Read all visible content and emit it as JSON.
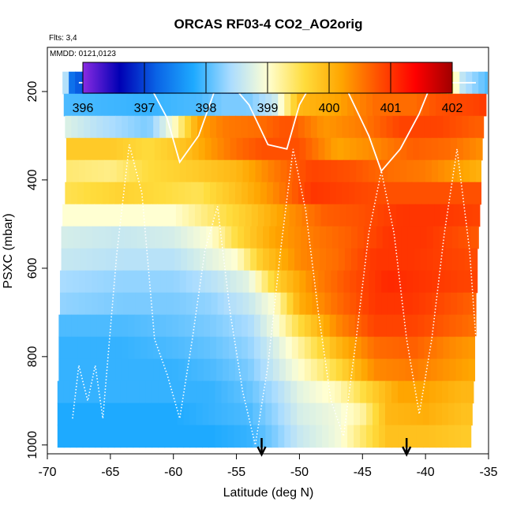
{
  "chart_data": {
    "type": "heatmap",
    "title": "ORCAS RF03-4 CO2_AO2orig",
    "subtitle_flights": "Flts: 3,4",
    "subtitle_dates": "MMDD: 0121,0123",
    "xlabel": "Latitude (deg N)",
    "ylabel": "PSXC (mbar)",
    "xlim": [
      -70,
      -35
    ],
    "ylim": [
      1020,
      100
    ],
    "x_ticks": [
      "-70",
      "-65",
      "-60",
      "-55",
      "-50",
      "-45",
      "-40",
      "-35"
    ],
    "x_tick_values": [
      -70,
      -65,
      -60,
      -55,
      -50,
      -45,
      -40,
      -35
    ],
    "y_ticks": [
      "200",
      "400",
      "600",
      "800",
      "1000"
    ],
    "y_tick_values": [
      200,
      400,
      600,
      800,
      1000
    ],
    "colorbar": {
      "min": 396,
      "max": 402,
      "labels": [
        "396",
        "397",
        "398",
        "399",
        "400",
        "401",
        "402"
      ],
      "stops": [
        "#8a2be2",
        "#0000b4",
        "#0a64e6",
        "#1eaaff",
        "#aadcff",
        "#ffffd2",
        "#ffdc3c",
        "#ffa500",
        "#ff5000",
        "#ff0000",
        "#a00000"
      ]
    },
    "arrows_lat": [
      -53,
      -41.5
    ],
    "pressure_levels": [
      180,
      230,
      280,
      330,
      380,
      430,
      480,
      530,
      580,
      630,
      680,
      730,
      780,
      830,
      880,
      930,
      980
    ],
    "profile_lat_bounds": [
      [
        -68.8,
        -35.1
      ],
      [
        -68.7,
        -35.2
      ],
      [
        -68.6,
        -35.4
      ],
      [
        -68.5,
        -35.5
      ],
      [
        -68.5,
        -35.6
      ],
      [
        -68.6,
        -35.6
      ],
      [
        -68.8,
        -35.7
      ],
      [
        -68.9,
        -35.8
      ],
      [
        -68.9,
        -35.9
      ],
      [
        -69.0,
        -35.9
      ],
      [
        -69.0,
        -36.0
      ],
      [
        -69.1,
        -36.0
      ],
      [
        -69.1,
        -36.1
      ],
      [
        -69.1,
        -36.1
      ],
      [
        -69.2,
        -36.2
      ],
      [
        -69.2,
        -36.3
      ],
      [
        -69.2,
        -36.4
      ]
    ],
    "co2_field": [
      [
        [
          -69.0,
          399.5
        ],
        [
          -68.0,
          397.2
        ],
        [
          -64.0,
          396.8
        ],
        [
          -61.0,
          397.2
        ],
        [
          -59.0,
          397.8
        ],
        [
          -57.0,
          397.5
        ],
        [
          -55.0,
          397.0
        ],
        [
          -53.0,
          398.8
        ],
        [
          -51.0,
          399.6
        ],
        [
          -49.0,
          400.2
        ],
        [
          -47.0,
          400.2
        ],
        [
          -45.0,
          400.4
        ],
        [
          -43.0,
          400.6
        ],
        [
          -41.0,
          400.5
        ],
        [
          -39.0,
          400.4
        ],
        [
          -37.0,
          398.5
        ],
        [
          -35.0,
          398.0
        ]
      ],
      [
        [
          -69.0,
          398.0
        ],
        [
          -62.0,
          397.9
        ],
        [
          -58.0,
          398.0
        ],
        [
          -56.0,
          398.2
        ],
        [
          -54.0,
          398.2
        ],
        [
          -52.0,
          398.6
        ],
        [
          -50.0,
          400.0
        ],
        [
          -47.0,
          400.2
        ],
        [
          -44.0,
          400.6
        ],
        [
          -41.0,
          400.6
        ],
        [
          -39.0,
          400.8
        ],
        [
          -36.0,
          400.9
        ],
        [
          -35.0,
          401.0
        ]
      ],
      [
        [
          -69.0,
          398.8
        ],
        [
          -66.0,
          398.5
        ],
        [
          -62.0,
          398.2
        ],
        [
          -60.0,
          399.0
        ],
        [
          -58.0,
          400.2
        ],
        [
          -56.0,
          400.5
        ],
        [
          -53.0,
          400.6
        ],
        [
          -51.0,
          400.8
        ],
        [
          -48.0,
          400.3
        ],
        [
          -45.0,
          400.5
        ],
        [
          -42.0,
          400.9
        ],
        [
          -39.0,
          400.9
        ],
        [
          -36.0,
          400.7
        ],
        [
          -35.0,
          400.7
        ]
      ],
      [
        [
          -69.0,
          399.8
        ],
        [
          -65.0,
          399.8
        ],
        [
          -62.0,
          399.6
        ],
        [
          -59.0,
          399.9
        ],
        [
          -57.0,
          400.3
        ],
        [
          -55.0,
          400.6
        ],
        [
          -53.0,
          400.8
        ],
        [
          -50.0,
          400.8
        ],
        [
          -47.0,
          400.2
        ],
        [
          -44.0,
          400.4
        ],
        [
          -41.0,
          400.7
        ],
        [
          -38.0,
          400.6
        ],
        [
          -35.0,
          400.3
        ]
      ],
      [
        [
          -69.0,
          399.4
        ],
        [
          -65.0,
          399.3
        ],
        [
          -62.0,
          399.6
        ],
        [
          -58.0,
          399.8
        ],
        [
          -55.0,
          400.0
        ],
        [
          -52.0,
          400.5
        ],
        [
          -49.0,
          400.9
        ],
        [
          -46.0,
          400.8
        ],
        [
          -43.0,
          400.6
        ],
        [
          -40.0,
          400.5
        ],
        [
          -37.0,
          400.2
        ],
        [
          -35.0,
          400.0
        ]
      ],
      [
        [
          -69.0,
          399.5
        ],
        [
          -64.0,
          399.7
        ],
        [
          -61.0,
          399.6
        ],
        [
          -58.0,
          399.5
        ],
        [
          -55.0,
          399.9
        ],
        [
          -52.0,
          400.4
        ],
        [
          -49.0,
          401.0
        ],
        [
          -46.0,
          400.9
        ],
        [
          -43.0,
          400.8
        ],
        [
          -40.0,
          400.8
        ],
        [
          -37.0,
          400.8
        ],
        [
          -35.0,
          400.8
        ]
      ],
      [
        [
          -69.0,
          399.0
        ],
        [
          -64.0,
          399.0
        ],
        [
          -60.0,
          399.0
        ],
        [
          -57.0,
          399.4
        ],
        [
          -54.0,
          399.8
        ],
        [
          -51.0,
          400.3
        ],
        [
          -48.0,
          400.7
        ],
        [
          -45.0,
          400.8
        ],
        [
          -42.0,
          401.0
        ],
        [
          -39.0,
          401.0
        ],
        [
          -36.0,
          400.9
        ],
        [
          -35.0,
          400.9
        ]
      ],
      [
        [
          -69.0,
          398.7
        ],
        [
          -64.0,
          398.6
        ],
        [
          -60.0,
          398.7
        ],
        [
          -57.0,
          399.0
        ],
        [
          -55.0,
          399.6
        ],
        [
          -52.0,
          400.2
        ],
        [
          -49.0,
          400.5
        ],
        [
          -46.0,
          400.7
        ],
        [
          -43.0,
          401.0
        ],
        [
          -40.0,
          401.0
        ],
        [
          -37.0,
          400.8
        ],
        [
          -35.0,
          400.7
        ]
      ],
      [
        [
          -69.0,
          398.6
        ],
        [
          -64.0,
          398.5
        ],
        [
          -60.0,
          398.5
        ],
        [
          -57.0,
          398.8
        ],
        [
          -55.0,
          399.0
        ],
        [
          -53.0,
          399.8
        ],
        [
          -50.0,
          400.4
        ],
        [
          -47.0,
          400.6
        ],
        [
          -44.0,
          401.0
        ],
        [
          -41.0,
          401.0
        ],
        [
          -38.0,
          400.9
        ],
        [
          -35.0,
          400.8
        ]
      ],
      [
        [
          -69.0,
          398.4
        ],
        [
          -64.0,
          398.3
        ],
        [
          -60.0,
          398.3
        ],
        [
          -57.0,
          398.5
        ],
        [
          -54.0,
          398.8
        ],
        [
          -52.0,
          399.7
        ],
        [
          -49.0,
          400.4
        ],
        [
          -46.0,
          400.8
        ],
        [
          -43.0,
          401.1
        ],
        [
          -40.0,
          401.0
        ],
        [
          -37.0,
          400.9
        ],
        [
          -35.0,
          400.9
        ]
      ],
      [
        [
          -69.0,
          398.3
        ],
        [
          -64.0,
          398.2
        ],
        [
          -60.0,
          398.2
        ],
        [
          -57.0,
          398.3
        ],
        [
          -54.0,
          398.6
        ],
        [
          -52.0,
          399.0
        ],
        [
          -50.0,
          400.1
        ],
        [
          -47.0,
          400.6
        ],
        [
          -44.0,
          401.0
        ],
        [
          -41.0,
          401.0
        ],
        [
          -38.0,
          400.8
        ],
        [
          -35.0,
          400.6
        ]
      ],
      [
        [
          -69.0,
          398.0
        ],
        [
          -64.0,
          398.0
        ],
        [
          -60.0,
          398.1
        ],
        [
          -57.0,
          398.2
        ],
        [
          -54.0,
          398.4
        ],
        [
          -52.0,
          398.9
        ],
        [
          -50.0,
          399.6
        ],
        [
          -47.0,
          400.4
        ],
        [
          -44.0,
          400.9
        ],
        [
          -41.0,
          400.9
        ],
        [
          -38.0,
          400.7
        ],
        [
          -35.0,
          400.5
        ]
      ],
      [
        [
          -69.0,
          397.9
        ],
        [
          -64.0,
          397.9
        ],
        [
          -60.0,
          398.0
        ],
        [
          -57.0,
          398.1
        ],
        [
          -54.0,
          398.3
        ],
        [
          -52.0,
          398.7
        ],
        [
          -50.0,
          399.2
        ],
        [
          -47.0,
          400.0
        ],
        [
          -44.0,
          400.6
        ],
        [
          -41.0,
          400.7
        ],
        [
          -38.0,
          400.4
        ],
        [
          -35.0,
          400.2
        ]
      ],
      [
        [
          -69.0,
          397.9
        ],
        [
          -64.0,
          397.9
        ],
        [
          -60.0,
          397.9
        ],
        [
          -57.0,
          398.0
        ],
        [
          -54.0,
          398.2
        ],
        [
          -52.0,
          398.6
        ],
        [
          -50.0,
          399.0
        ],
        [
          -47.0,
          399.6
        ],
        [
          -44.0,
          400.4
        ],
        [
          -41.0,
          400.5
        ],
        [
          -38.0,
          400.3
        ],
        [
          -35.0,
          400.1
        ]
      ],
      [
        [
          -69.0,
          397.9
        ],
        [
          -64.0,
          397.9
        ],
        [
          -60.0,
          397.9
        ],
        [
          -57.0,
          397.9
        ],
        [
          -54.0,
          398.1
        ],
        [
          -52.0,
          398.4
        ],
        [
          -50.0,
          398.8
        ],
        [
          -47.0,
          399.1
        ],
        [
          -44.0,
          399.8
        ],
        [
          -42.0,
          400.2
        ],
        [
          -40.0,
          400.2
        ],
        [
          -37.0,
          400.0
        ],
        [
          -35.0,
          400.0
        ]
      ],
      [
        [
          -69.0,
          397.8
        ],
        [
          -64.0,
          397.8
        ],
        [
          -60.0,
          397.8
        ],
        [
          -57.0,
          397.9
        ],
        [
          -54.0,
          398.0
        ],
        [
          -52.0,
          398.3
        ],
        [
          -50.0,
          398.7
        ],
        [
          -47.0,
          398.9
        ],
        [
          -45.0,
          399.2
        ],
        [
          -43.0,
          400.0
        ],
        [
          -40.0,
          400.1
        ],
        [
          -37.0,
          399.9
        ],
        [
          -35.0,
          399.9
        ]
      ],
      [
        [
          -69.0,
          397.8
        ],
        [
          -64.0,
          397.8
        ],
        [
          -60.0,
          397.8
        ],
        [
          -57.0,
          397.8
        ],
        [
          -54.0,
          397.9
        ],
        [
          -52.0,
          398.2
        ],
        [
          -50.0,
          398.6
        ],
        [
          -47.0,
          398.9
        ],
        [
          -45.0,
          399.4
        ],
        [
          -43.0,
          399.9
        ],
        [
          -40.0,
          399.9
        ],
        [
          -37.0,
          399.8
        ],
        [
          -35.0,
          399.8
        ]
      ]
    ],
    "flight_track_solid": [
      [
        -67.5,
        180
      ],
      [
        -64.0,
        180
      ],
      [
        -62.0,
        180
      ],
      [
        -60.5,
        260
      ],
      [
        -59.5,
        360
      ],
      [
        -58.0,
        300
      ],
      [
        -56.5,
        180
      ],
      [
        -55.5,
        180
      ],
      [
        -54.0,
        230
      ],
      [
        -52.5,
        320
      ],
      [
        -51.0,
        330
      ],
      [
        -50.0,
        230
      ],
      [
        -49.0,
        180
      ],
      [
        -46.5,
        180
      ],
      [
        -45.5,
        240
      ],
      [
        -44.5,
        300
      ],
      [
        -43.5,
        380
      ],
      [
        -42.0,
        330
      ],
      [
        -40.5,
        250
      ],
      [
        -39.5,
        180
      ],
      [
        -36.0,
        180
      ]
    ],
    "flight_track_dotted": [
      [
        -68.0,
        940
      ],
      [
        -67.5,
        820
      ],
      [
        -66.8,
        900
      ],
      [
        -66.2,
        820
      ],
      [
        -65.6,
        940
      ],
      [
        -64.5,
        570
      ],
      [
        -63.5,
        320
      ],
      [
        -62.5,
        430
      ],
      [
        -61.5,
        760
      ],
      [
        -60.5,
        840
      ],
      [
        -59.5,
        940
      ],
      [
        -58.5,
        760
      ],
      [
        -57.5,
        560
      ],
      [
        -56.5,
        460
      ],
      [
        -55.5,
        700
      ],
      [
        -54.5,
        880
      ],
      [
        -53.5,
        1000
      ],
      [
        -52.5,
        820
      ],
      [
        -51.5,
        560
      ],
      [
        -50.5,
        330
      ],
      [
        -49.5,
        470
      ],
      [
        -48.5,
        700
      ],
      [
        -47.5,
        900
      ],
      [
        -46.5,
        980
      ],
      [
        -45.5,
        760
      ],
      [
        -44.5,
        520
      ],
      [
        -43.5,
        380
      ],
      [
        -42.5,
        520
      ],
      [
        -41.5,
        760
      ],
      [
        -40.5,
        930
      ],
      [
        -39.5,
        760
      ],
      [
        -38.5,
        520
      ],
      [
        -37.5,
        330
      ],
      [
        -36.5,
        560
      ],
      [
        -36.0,
        760
      ]
    ]
  }
}
